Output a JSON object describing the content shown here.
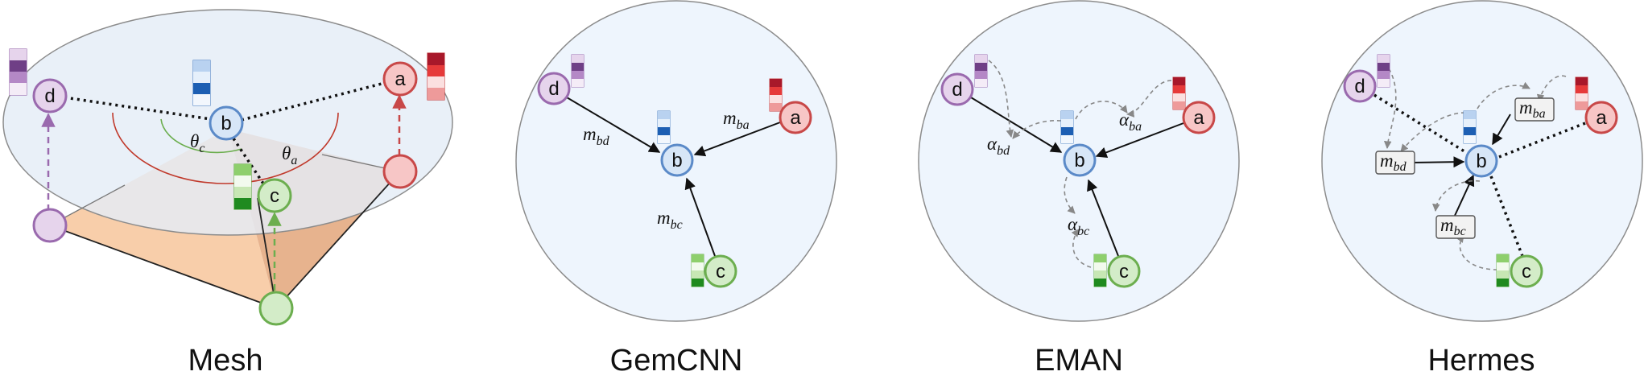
{
  "panels": [
    {
      "caption": "Mesh"
    },
    {
      "caption": "GemCNN"
    },
    {
      "caption": "EMAN"
    },
    {
      "caption": "Hermes"
    }
  ],
  "nodes": {
    "a": "a",
    "b": "b",
    "c": "c",
    "d": "d"
  },
  "mesh": {
    "theta_c": {
      "sym": "θ",
      "sub": "c"
    },
    "theta_a": {
      "sym": "θ",
      "sub": "a"
    }
  },
  "gemcnn": {
    "m_bd": {
      "sym": "m",
      "sub": "bd"
    },
    "m_ba": {
      "sym": "m",
      "sub": "ba"
    },
    "m_bc": {
      "sym": "m",
      "sub": "bc"
    }
  },
  "eman": {
    "alpha_bd": {
      "sym": "α",
      "sub": "bd"
    },
    "alpha_ba": {
      "sym": "α",
      "sub": "ba"
    },
    "alpha_bc": {
      "sym": "α",
      "sub": "bc"
    }
  },
  "hermes": {
    "m_bd": {
      "sym": "m",
      "sub": "bd"
    },
    "m_ba": {
      "sym": "m",
      "sub": "ba"
    },
    "m_bc": {
      "sym": "m",
      "sub": "bc"
    }
  },
  "colors": {
    "a_fill": "#f7c6c6",
    "a_stroke": "#c84848",
    "b_fill": "#d7e6f7",
    "b_stroke": "#5b8ac8",
    "c_fill": "#d3ecc8",
    "c_stroke": "#6cae4f",
    "d_fill": "#e6d4ec",
    "d_stroke": "#9a6aae",
    "circle_bg": "#eef5fd",
    "circle_stroke": "#8c8c8c",
    "mesh_face": "#f8ceaa",
    "mesh_face_dark": "#e7b38e"
  }
}
